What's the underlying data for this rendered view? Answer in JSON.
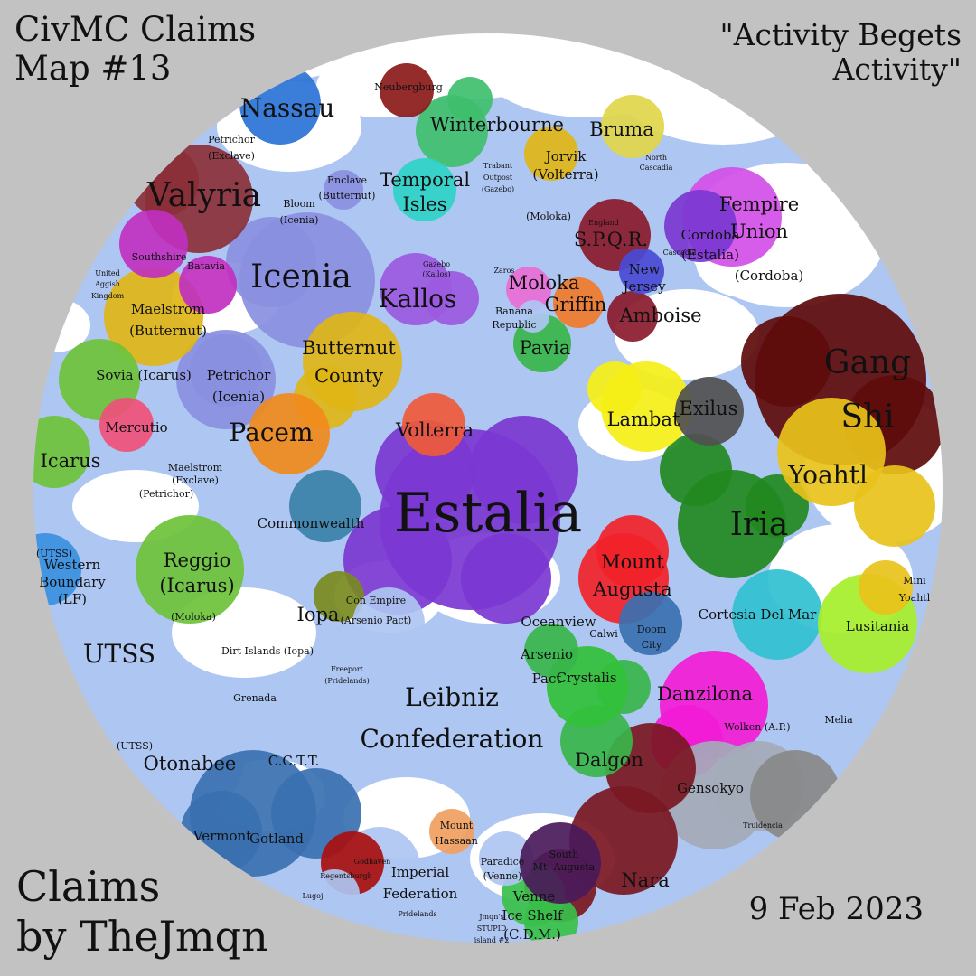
{
  "header": {
    "title_line1": "CivMC Claims",
    "title_line2": "Map #13",
    "motto_line1": "\"Activity Begets",
    "motto_line2": "Activity\""
  },
  "footer": {
    "credit_line1": "Claims",
    "credit_line2": "by TheJmqn",
    "date": "9 Feb 2023"
  },
  "colors": {
    "background": "#c2c2c2",
    "ocean": "#aec6f2",
    "land": "#ffffff",
    "estalia": "#7b37d1",
    "icenia": "#8a8fe0",
    "valyria": "#8b3038",
    "butternut": "#e0b516",
    "gang_shi": "#5e0b0b",
    "iria": "#21891f",
    "yoahtl": "#e8c21a",
    "lambat": "#f5ef16",
    "danzilona": "#a6ef2a",
    "gensokyo": "#f21bd6",
    "nara": "#a4aab8",
    "dalgon": "#7a1722"
  },
  "regions": [
    {
      "label": "Estalia",
      "size": "xl",
      "color": "#7b37d1"
    },
    {
      "label": "Icenia",
      "size": "l",
      "color": "#8a8fe0"
    },
    {
      "label": "Valyria",
      "size": "l",
      "color": "#8b3038"
    },
    {
      "label": "Gang",
      "size": "l",
      "color": "#5e0b0b"
    },
    {
      "label": "Shi",
      "size": "l",
      "color": "#5e0b0b"
    },
    {
      "label": "Iria",
      "size": "l",
      "color": "#21891f"
    },
    {
      "label": "Yoahtl",
      "size": "m",
      "color": "#e8c21a"
    },
    {
      "label": "Kallos",
      "size": "m",
      "color": "#9b59e0"
    },
    {
      "label": "Nassau",
      "size": "m",
      "color": "#2a73d6"
    },
    {
      "label": "Winterbourne",
      "size": "s",
      "color": "#3fbf6e"
    },
    {
      "label": "Bruma",
      "size": "s",
      "color": "#e0d64a"
    },
    {
      "label": "Fempire",
      "size": "s",
      "color": "#d24fe8"
    },
    {
      "label": "Union",
      "size": "s",
      "color": "#d24fe8"
    },
    {
      "label": "Temporal",
      "size": "s",
      "color": "#2fd3c8"
    },
    {
      "label": "Isles",
      "size": "s",
      "color": "#2fd3c8"
    },
    {
      "label": "Butternut",
      "size": "s",
      "color": "#e0b516"
    },
    {
      "label": "County",
      "size": "s",
      "color": "#e0b516"
    },
    {
      "label": "Pacem",
      "size": "m",
      "color": "#f08a1c"
    },
    {
      "label": "Volterra",
      "size": "s",
      "color": "#ef5a3a"
    },
    {
      "label": "Lambat",
      "size": "s",
      "color": "#f5ef16"
    },
    {
      "label": "Exilus",
      "size": "s",
      "color": "#505050"
    },
    {
      "label": "Pavia",
      "size": "s",
      "color": "#38b54a"
    },
    {
      "label": "Moloka",
      "size": "s",
      "color": "#e86cd6"
    },
    {
      "label": "Griffin",
      "size": "s",
      "color": "#f07a2a"
    },
    {
      "label": "Amboise",
      "size": "s",
      "color": "#8a1a2c"
    },
    {
      "label": "S.P.Q.R.",
      "size": "s",
      "color": "#8a1a2c"
    },
    {
      "label": "Cordoba",
      "size": "xs",
      "color": "#7b37d1"
    },
    {
      "label": "(Estalia)",
      "size": "xs",
      "color": "#7b37d1"
    },
    {
      "label": "New",
      "size": "xs",
      "color": "#4a4ad6"
    },
    {
      "label": "Jersey",
      "size": "xs",
      "color": "#4a4ad6"
    },
    {
      "label": "(Cordoba)",
      "size": "xs",
      "color": "#ffffff"
    },
    {
      "label": "Maelstrom",
      "size": "xs",
      "color": "#e0b516"
    },
    {
      "label": "(Butternut)",
      "size": "xs",
      "color": "#e0b516"
    },
    {
      "label": "Sovia (Icarus)",
      "size": "xs",
      "color": "#6cc23a"
    },
    {
      "label": "Petrichor",
      "size": "xs",
      "color": "#8a8fe0"
    },
    {
      "label": "(Icenia)",
      "size": "xs",
      "color": "#8a8fe0"
    },
    {
      "label": "Mercutio",
      "size": "xs",
      "color": "#f0507a"
    },
    {
      "label": "Icarus",
      "size": "s",
      "color": "#6cc23a"
    },
    {
      "label": "Reggio",
      "size": "s",
      "color": "#6cc23a"
    },
    {
      "label": "(Icarus)",
      "size": "s",
      "color": "#6cc23a"
    },
    {
      "label": "Commonwealth",
      "size": "xs",
      "color": "#3a80a8"
    },
    {
      "label": "Iopa",
      "size": "s",
      "color": "#7a8a20"
    },
    {
      "label": "UTSS",
      "size": "m",
      "color": "#aec6f2"
    },
    {
      "label": "Western",
      "size": "xs",
      "color": "#3a90e0"
    },
    {
      "label": "Boundary",
      "size": "xs",
      "color": "#3a90e0"
    },
    {
      "label": "(LF)",
      "size": "xs",
      "color": "#3a90e0"
    },
    {
      "label": "Leibniz",
      "size": "m",
      "color": "#aec6f2"
    },
    {
      "label": "Confederation",
      "size": "m",
      "color": "#aec6f2"
    },
    {
      "label": "Oceanview",
      "size": "xs",
      "color": "#aec6f2"
    },
    {
      "label": "Mount",
      "size": "s",
      "color": "#f2222a"
    },
    {
      "label": "Augusta",
      "size": "s",
      "color": "#f2222a"
    },
    {
      "label": "Cortesia Del Mar",
      "size": "xs",
      "color": "#30c0d0"
    },
    {
      "label": "Lusitania",
      "size": "xs",
      "color": "#30c0d0"
    },
    {
      "label": "Danzilona",
      "size": "s",
      "color": "#a6ef2a"
    },
    {
      "label": "Gensokyo",
      "size": "xs",
      "color": "#f21bd6"
    },
    {
      "label": "Nara",
      "size": "s",
      "color": "#a4aab8"
    },
    {
      "label": "Dalgon",
      "size": "s",
      "color": "#7a1722"
    },
    {
      "label": "Arsenio",
      "size": "xs",
      "color": "#38b54a"
    },
    {
      "label": "Pact",
      "size": "xs",
      "color": "#38b54a"
    },
    {
      "label": "Crystalis",
      "size": "xs",
      "color": "#38b54a"
    },
    {
      "label": "Otonabee",
      "size": "s",
      "color": "#32c03a"
    },
    {
      "label": "C.C.T.T.",
      "size": "xs",
      "color": "#aec6f2"
    },
    {
      "label": "Gotland",
      "size": "xs",
      "color": "#3a70b0"
    },
    {
      "label": "Vermont",
      "size": "xs",
      "color": "#3a70b0"
    },
    {
      "label": "Imperial",
      "size": "xs",
      "color": "#aec6f2"
    },
    {
      "label": "Federation",
      "size": "xs",
      "color": "#aec6f2"
    },
    {
      "label": "Mount",
      "size": "xxs",
      "color": "#f0a060"
    },
    {
      "label": "Hassaan",
      "size": "xxs",
      "color": "#f0a060"
    },
    {
      "label": "Venne",
      "size": "xs",
      "color": "#38c04a"
    },
    {
      "label": "Ice Shelf",
      "size": "xs",
      "color": "#38c04a"
    },
    {
      "label": "(C.D.M.)",
      "size": "xs",
      "color": "#38c04a"
    },
    {
      "label": "Paradice",
      "size": "xxs",
      "color": "#aec6f2"
    },
    {
      "label": "(Venne)",
      "size": "xxs",
      "color": "#aec6f2"
    },
    {
      "label": "Mini",
      "size": "xxs",
      "color": "#e8c21a"
    },
    {
      "label": "Yoahtl",
      "size": "xxs",
      "color": "#e8c21a"
    },
    {
      "label": "Neubergburg",
      "size": "xxs",
      "color": "#8b1a1a"
    },
    {
      "label": "Bloom",
      "size": "xxs",
      "color": "#8a8fe0"
    },
    {
      "label": "(Icenia)",
      "size": "xxs",
      "color": "#8a8fe0"
    },
    {
      "label": "Enclave",
      "size": "xxs",
      "color": "#e0b516"
    },
    {
      "label": "(Butternut)",
      "size": "xxs",
      "color": "#e0b516"
    },
    {
      "label": "Jorvik",
      "size": "xs",
      "color": "#ef5a3a"
    },
    {
      "label": "(Volterra)",
      "size": "xs",
      "color": "#ef5a3a"
    },
    {
      "label": "(Moloka)",
      "size": "xxs",
      "color": "#aec6f2"
    },
    {
      "label": "Banana",
      "size": "xxs",
      "color": "#fff3a0"
    },
    {
      "label": "Republic",
      "size": "xxs",
      "color": "#fff3a0"
    },
    {
      "label": "Dirt Islands (Iopa)",
      "size": "xxs",
      "color": "#aec6f2"
    },
    {
      "label": "Grenada",
      "size": "xxs",
      "color": "#aec6f2"
    },
    {
      "label": "Con Empire",
      "size": "xxs",
      "color": "#1e8a1e"
    },
    {
      "label": "(Arsenio Pact)",
      "size": "xxs",
      "color": "#1e8a1e"
    },
    {
      "label": "Petrichor",
      "size": "xxs",
      "color": "#aec6f2"
    },
    {
      "label": "(Exclave)",
      "size": "xxs",
      "color": "#aec6f2"
    },
    {
      "label": "(Petrichor)",
      "size": "xxs",
      "color": "#aec6f2"
    },
    {
      "label": "Maelstrom",
      "size": "xxs",
      "color": "#aec6f2"
    },
    {
      "label": "(Exclave)",
      "size": "xxs",
      "color": "#aec6f2"
    },
    {
      "label": "(UTSS)",
      "size": "xxs",
      "color": "#aec6f2"
    },
    {
      "label": "(UTSS)",
      "size": "xxs",
      "color": "#aec6f2"
    },
    {
      "label": "(Moloka)",
      "size": "xxs",
      "color": "#aec6f2"
    },
    {
      "label": "Wolken (A.P.)",
      "size": "xxs",
      "color": "#30a048"
    },
    {
      "label": "Melia",
      "size": "xxs",
      "color": "#aec6f2"
    },
    {
      "label": "Southshire",
      "size": "xxs",
      "color": "#123d12"
    },
    {
      "label": "Batavia",
      "size": "xxs",
      "color": "#1f4fb0"
    },
    {
      "label": "United",
      "size": "xxxs",
      "color": "#aec6f2"
    },
    {
      "label": "Aggish",
      "size": "xxxs",
      "color": "#aec6f2"
    },
    {
      "label": "Kingdom",
      "size": "xxxs",
      "color": "#aec6f2"
    },
    {
      "label": "Gazebo",
      "size": "xxxs",
      "color": "#9b59e0"
    },
    {
      "label": "(Kallos)",
      "size": "xxxs",
      "color": "#9b59e0"
    },
    {
      "label": "Zaros",
      "size": "xxxs",
      "color": "#aec6f2"
    },
    {
      "label": "Trabant",
      "size": "xxxs",
      "color": "#c030c0"
    },
    {
      "label": "Outpost",
      "size": "xxxs",
      "color": "#c030c0"
    },
    {
      "label": "(Gazebo)",
      "size": "xxxs",
      "color": "#c030c0"
    },
    {
      "label": "North",
      "size": "xxxs",
      "color": "#2fd3c8"
    },
    {
      "label": "Cascadia",
      "size": "xxxs",
      "color": "#2fd3c8"
    },
    {
      "label": "Cascadia",
      "size": "xxxs",
      "color": "#2fd3c8"
    },
    {
      "label": "England",
      "size": "xxxs",
      "color": "#8a1a2c"
    },
    {
      "label": "Freeport",
      "size": "xxxs",
      "color": "#aec6f2"
    },
    {
      "label": "(Pridelands)",
      "size": "xxxs",
      "color": "#aec6f2"
    },
    {
      "label": "South",
      "size": "xxs",
      "color": "#f2222a"
    },
    {
      "label": "Mt. Augusta",
      "size": "xxs",
      "color": "#f2222a"
    },
    {
      "label": "Calwi",
      "size": "xxs",
      "color": "#f08a1c"
    },
    {
      "label": "Doom",
      "size": "xxs",
      "color": "#4a1a5a"
    },
    {
      "label": "City",
      "size": "xxs",
      "color": "#4a1a5a"
    },
    {
      "label": "Lugoj",
      "size": "xxxs",
      "color": "#3a70b0"
    },
    {
      "label": "Pridelands",
      "size": "xxxs",
      "color": "#3a70b0"
    },
    {
      "label": "Regentsburgh",
      "size": "xxxs",
      "color": "#3a70b0"
    },
    {
      "label": "Godhaven",
      "size": "xxxs",
      "color": "#30d0c0"
    },
    {
      "label": "Jmqn's",
      "size": "xxxs",
      "color": "#aec6f2"
    },
    {
      "label": "STUPID",
      "size": "xxxs",
      "color": "#aec6f2"
    },
    {
      "label": "island #2",
      "size": "xxxs",
      "color": "#aec6f2"
    },
    {
      "label": "Truidencia",
      "size": "xxxs",
      "color": "#a80f0f"
    }
  ]
}
